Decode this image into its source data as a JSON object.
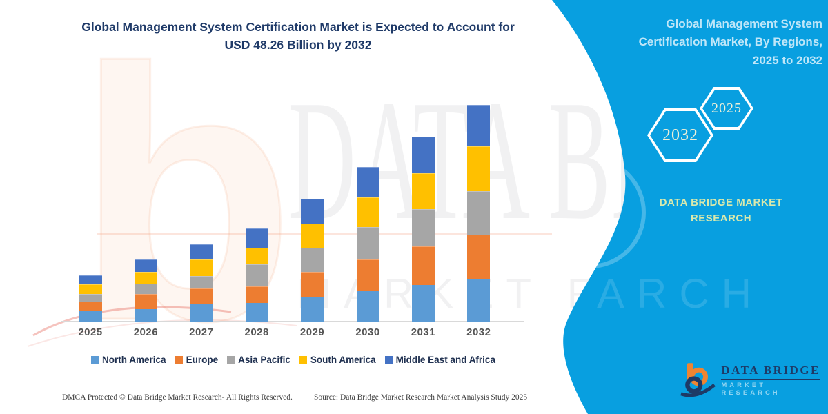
{
  "page": {
    "title_line1": "Global Management System Certification Market is Expected to Account for",
    "title_line2": "USD 48.26 Billion by 2032",
    "title_color": "#1f3a68"
  },
  "sidebar": {
    "bg_color": "#089fe0",
    "heading_lines": [
      "Global Management System",
      "Certification Market, By Regions,",
      "2025 to 2032"
    ],
    "hexagons": [
      {
        "label": "2032"
      },
      {
        "label": "2025"
      }
    ],
    "caption_line1": "DATA BRIDGE MARKET",
    "caption_line2": "RESEARCH",
    "logo": {
      "name": "DATA BRIDGE",
      "subtitle": "MARKET RESEARCH",
      "icon": "data-bridge-b-logo",
      "orange": "#ee8532",
      "navy": "#1e3a66"
    }
  },
  "watermark": {
    "big_letters": "DATA BRID",
    "row2_letters_gray": "MARKET RES",
    "row2_letters_white": "ARCH",
    "logo_glyph": "b"
  },
  "footer": {
    "dmca": "DMCA Protected © Data Bridge Market Research-  All Rights Reserved.",
    "source": "Source: Data Bridge Market Research  Market Analysis Study 2025"
  },
  "chart_data": {
    "type": "bar",
    "stacked": true,
    "unit": "USD Billion",
    "stated_total_2032": 48.26,
    "values_estimated_from_pixels": true,
    "categories": [
      "2025",
      "2026",
      "2027",
      "2028",
      "2029",
      "2030",
      "2031",
      "2032"
    ],
    "series": [
      {
        "name": "North America",
        "color": "#5b9bd5",
        "values": [
          2.3,
          2.7,
          3.8,
          4.2,
          5.6,
          6.8,
          8.2,
          9.6
        ]
      },
      {
        "name": "Europe",
        "color": "#ed7d31",
        "values": [
          2.1,
          3.4,
          3.6,
          3.6,
          5.5,
          7.1,
          8.6,
          9.8
        ]
      },
      {
        "name": "Asia Pacific",
        "color": "#a6a6a6",
        "values": [
          1.8,
          2.3,
          2.8,
          5.0,
          5.4,
          7.2,
          8.3,
          9.7
        ]
      },
      {
        "name": "South America",
        "color": "#ffc000",
        "values": [
          2.1,
          2.7,
          3.6,
          3.6,
          5.4,
          6.6,
          8.0,
          10.0
        ]
      },
      {
        "name": "Middle East and Africa",
        "color": "#4472c4",
        "values": [
          2.0,
          2.8,
          3.5,
          4.4,
          5.5,
          6.8,
          8.2,
          9.2
        ]
      }
    ],
    "totals": [
      10.3,
      13.9,
      17.3,
      20.8,
      27.4,
      34.5,
      41.3,
      48.3
    ],
    "title": "Global Management System Certification Market is Expected to Account for USD 48.26 Billion by 2032",
    "xlabel": "",
    "ylabel": "",
    "y_axis_shown": false,
    "grid": false,
    "legend_position": "bottom"
  }
}
